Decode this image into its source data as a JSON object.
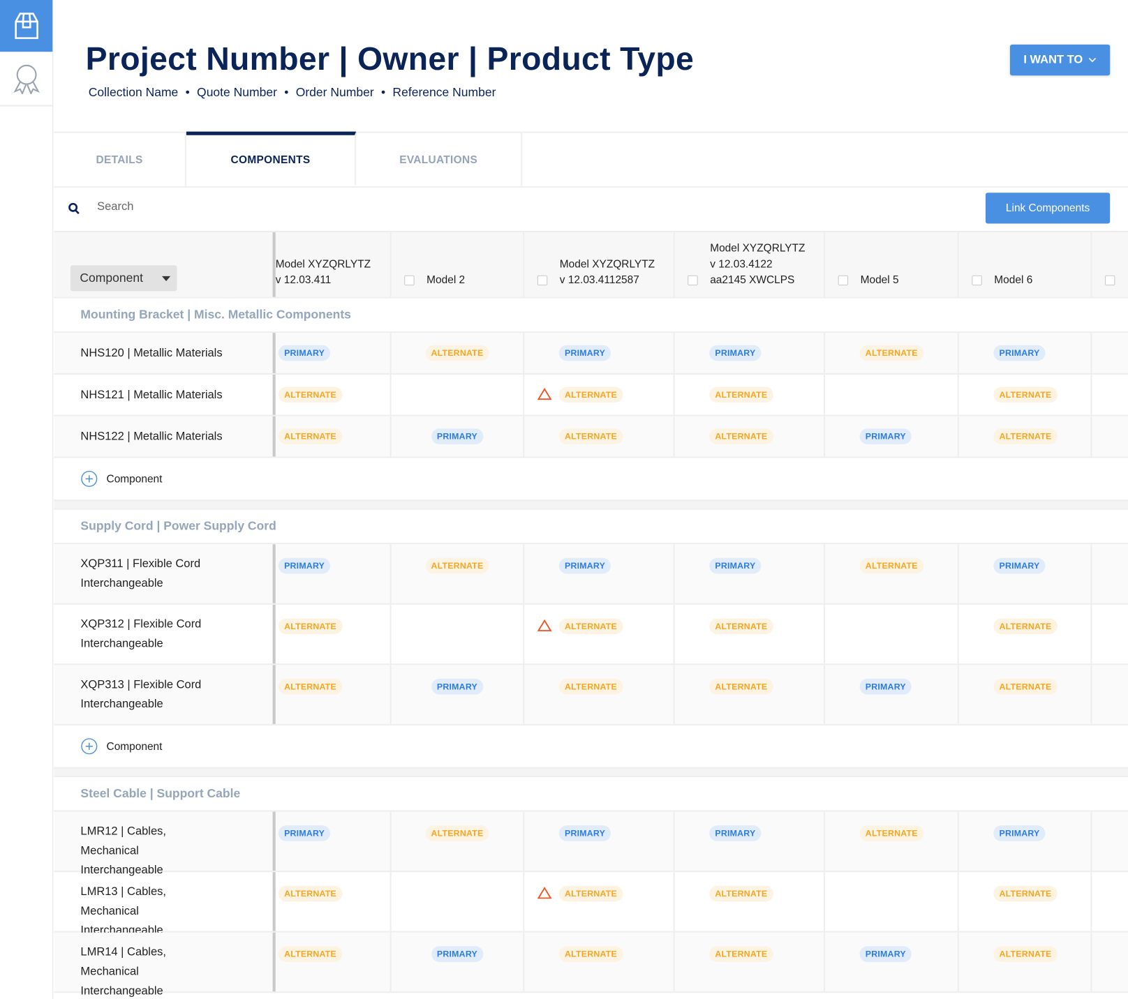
{
  "sidebar": {
    "items": [
      {
        "icon": "package-icon",
        "active": true
      },
      {
        "icon": "award-ribbon-icon",
        "active": false
      }
    ]
  },
  "header": {
    "title": "Project Number | Owner | Product Type",
    "meta": [
      "Collection Name",
      "Quote Number",
      "Order Number",
      "Reference Number"
    ],
    "separator": "•",
    "action_button": "I WANT TO"
  },
  "tabs": [
    {
      "label": "DETAILS",
      "active": false
    },
    {
      "label": "COMPONENTS",
      "active": true
    },
    {
      "label": "EVALUATIONS",
      "active": false
    }
  ],
  "search": {
    "placeholder": "Search",
    "value": "",
    "link_button": "Link Components"
  },
  "table": {
    "component_select": "Component",
    "columns": [
      [
        "Model XYZQRLYTZ",
        "v 12.03.411"
      ],
      [
        "Model 2"
      ],
      [
        "Model XYZQRLYTZ",
        "v 12.03.4112587"
      ],
      [
        "Model XYZQRLYTZ",
        "v 12.03.4122",
        "aa2145 XWCLPS"
      ],
      [
        "Model 5"
      ],
      [
        "Model 6"
      ],
      [
        ""
      ]
    ],
    "add_label": "Component",
    "groups": [
      {
        "title": "Mounting Bracket | Misc. Metallic Components",
        "rows": [
          {
            "name": "NHS120 | Metallic Materials",
            "cells": [
              "PRIMARY",
              "ALTERNATE",
              "PRIMARY",
              "PRIMARY",
              "ALTERNATE",
              "PRIMARY"
            ],
            "warning_col": null
          },
          {
            "name": "NHS121 | Metallic Materials",
            "cells": [
              "ALTERNATE",
              "",
              "ALTERNATE",
              "ALTERNATE",
              "",
              "ALTERNATE"
            ],
            "warning_col": 2
          },
          {
            "name": "NHS122 | Metallic Materials",
            "cells": [
              "ALTERNATE",
              "PRIMARY",
              "ALTERNATE",
              "ALTERNATE",
              "PRIMARY",
              "ALTERNATE"
            ],
            "warning_col": null
          }
        ]
      },
      {
        "title": "Supply Cord | Power Supply Cord",
        "rows": [
          {
            "name": "XQP311 | Flexible Cord Interchangeable",
            "cells": [
              "PRIMARY",
              "ALTERNATE",
              "PRIMARY",
              "PRIMARY",
              "ALTERNATE",
              "PRIMARY"
            ],
            "warning_col": null
          },
          {
            "name": "XQP312 | Flexible Cord Interchangeable",
            "cells": [
              "ALTERNATE",
              "",
              "ALTERNATE",
              "ALTERNATE",
              "",
              "ALTERNATE"
            ],
            "warning_col": 2
          },
          {
            "name": "XQP313 | Flexible Cord Interchangeable",
            "cells": [
              "ALTERNATE",
              "PRIMARY",
              "ALTERNATE",
              "ALTERNATE",
              "PRIMARY",
              "ALTERNATE"
            ],
            "warning_col": null
          }
        ]
      },
      {
        "title": "Steel Cable | Support Cable",
        "rows": [
          {
            "name": "LMR12 | Cables, Mechanical Interchangeable",
            "cells": [
              "PRIMARY",
              "ALTERNATE",
              "PRIMARY",
              "PRIMARY",
              "ALTERNATE",
              "PRIMARY"
            ],
            "warning_col": null
          },
          {
            "name": "LMR13 | Cables, Mechanical Interchangeable",
            "cells": [
              "ALTERNATE",
              "",
              "ALTERNATE",
              "ALTERNATE",
              "",
              "ALTERNATE"
            ],
            "warning_col": 2
          },
          {
            "name": "LMR14 | Cables, Mechanical Interchangeable",
            "cells": [
              "ALTERNATE",
              "PRIMARY",
              "ALTERNATE",
              "ALTERNATE",
              "PRIMARY",
              "ALTERNATE"
            ],
            "warning_col": null
          }
        ]
      }
    ]
  },
  "colors": {
    "brand_blue": "#4a90e2",
    "navy": "#0b2458",
    "primary_badge": "#2c7be5",
    "alternate_badge": "#f5a623",
    "warning": "#f0521e"
  }
}
